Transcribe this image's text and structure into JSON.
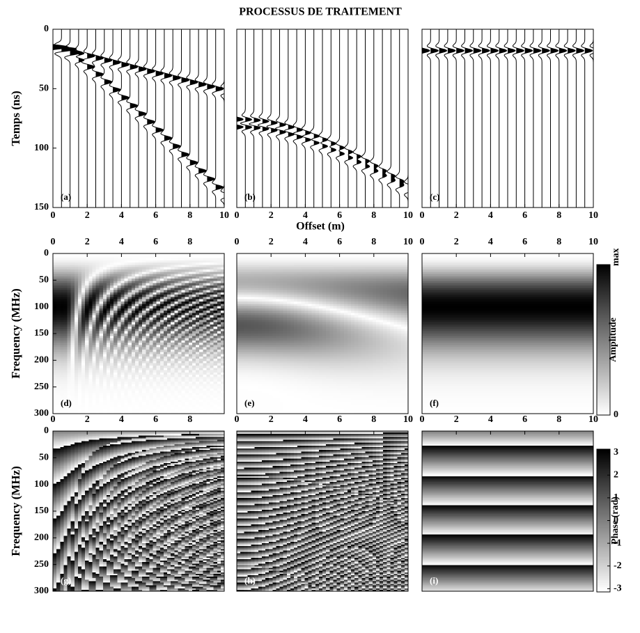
{
  "title": "PROCESSUS DE TRAITEMENT",
  "chart_data": [
    {
      "type": "wiggle",
      "panel": "(a)",
      "xlim": [
        0,
        10
      ],
      "xticks": [
        0,
        2,
        4,
        6,
        8,
        10
      ],
      "xaxis": "bottom",
      "ylim": [
        0,
        150
      ],
      "yticks": [
        0,
        50,
        100,
        150
      ],
      "ylabel": "Temps (ns)"
    },
    {
      "type": "wiggle",
      "panel": "(b)",
      "xlim": [
        0,
        10
      ],
      "xticks": [
        0,
        2,
        4,
        6,
        8,
        10
      ],
      "xaxis": "bottom",
      "ylim": [
        0,
        150
      ],
      "xlabel": "Offset (m)"
    },
    {
      "type": "wiggle",
      "panel": "(c)",
      "xlim": [
        0,
        10
      ],
      "xticks": [
        0,
        2,
        4,
        6,
        8,
        10
      ],
      "xaxis": "bottom",
      "ylim": [
        0,
        150
      ]
    },
    {
      "type": "heatmap",
      "quantity": "amplitude",
      "panel": "(d)",
      "xlim": [
        0,
        10
      ],
      "xticks": [
        0,
        2,
        4,
        6,
        8
      ],
      "xaxis": "top",
      "ylim": [
        0,
        300
      ],
      "yticks": [
        0,
        50,
        100,
        150,
        200,
        250,
        300
      ],
      "ylabel": "Frequency (MHz)"
    },
    {
      "type": "heatmap",
      "quantity": "amplitude",
      "panel": "(e)",
      "xlim": [
        0,
        10
      ],
      "xticks": [
        0,
        2,
        4,
        6,
        8,
        10
      ],
      "xaxis": "top",
      "ylim": [
        0,
        300
      ]
    },
    {
      "type": "heatmap",
      "quantity": "amplitude",
      "panel": "(f)",
      "xlim": [
        0,
        10
      ],
      "xticks": [
        0,
        2,
        4,
        6,
        8,
        10
      ],
      "xaxis": "top",
      "ylim": [
        0,
        300
      ]
    },
    {
      "type": "heatmap",
      "quantity": "phase",
      "panel": "(g)",
      "xlim": [
        0,
        10
      ],
      "xticks": [
        0,
        2,
        4,
        6,
        8
      ],
      "xaxis": "top",
      "ylim": [
        0,
        300
      ],
      "yticks": [
        0,
        50,
        100,
        150,
        200,
        250,
        300
      ],
      "ylabel": "Frequency (MHz)"
    },
    {
      "type": "heatmap",
      "quantity": "phase",
      "panel": "(h)",
      "xlim": [
        0,
        10
      ],
      "xticks": [
        0,
        2,
        4,
        6,
        8,
        10
      ],
      "xaxis": "top",
      "ylim": [
        0,
        300
      ]
    },
    {
      "type": "heatmap",
      "quantity": "phase",
      "panel": "(i)",
      "xlim": [
        0,
        10
      ],
      "xticks": [
        0,
        2,
        4,
        6,
        8,
        10
      ],
      "xaxis": "top",
      "ylim": [
        0,
        300
      ]
    }
  ],
  "colorbars": [
    {
      "label": "Amplitude",
      "lim": [
        0,
        1
      ],
      "ticks": [
        0,
        {
          "value": 1,
          "label": "max"
        }
      ]
    },
    {
      "label": "Phase (rad)",
      "lim": [
        -3.1416,
        3.1416
      ],
      "ticks": [
        -3,
        -2,
        -1,
        0,
        1,
        2,
        3
      ]
    }
  ]
}
